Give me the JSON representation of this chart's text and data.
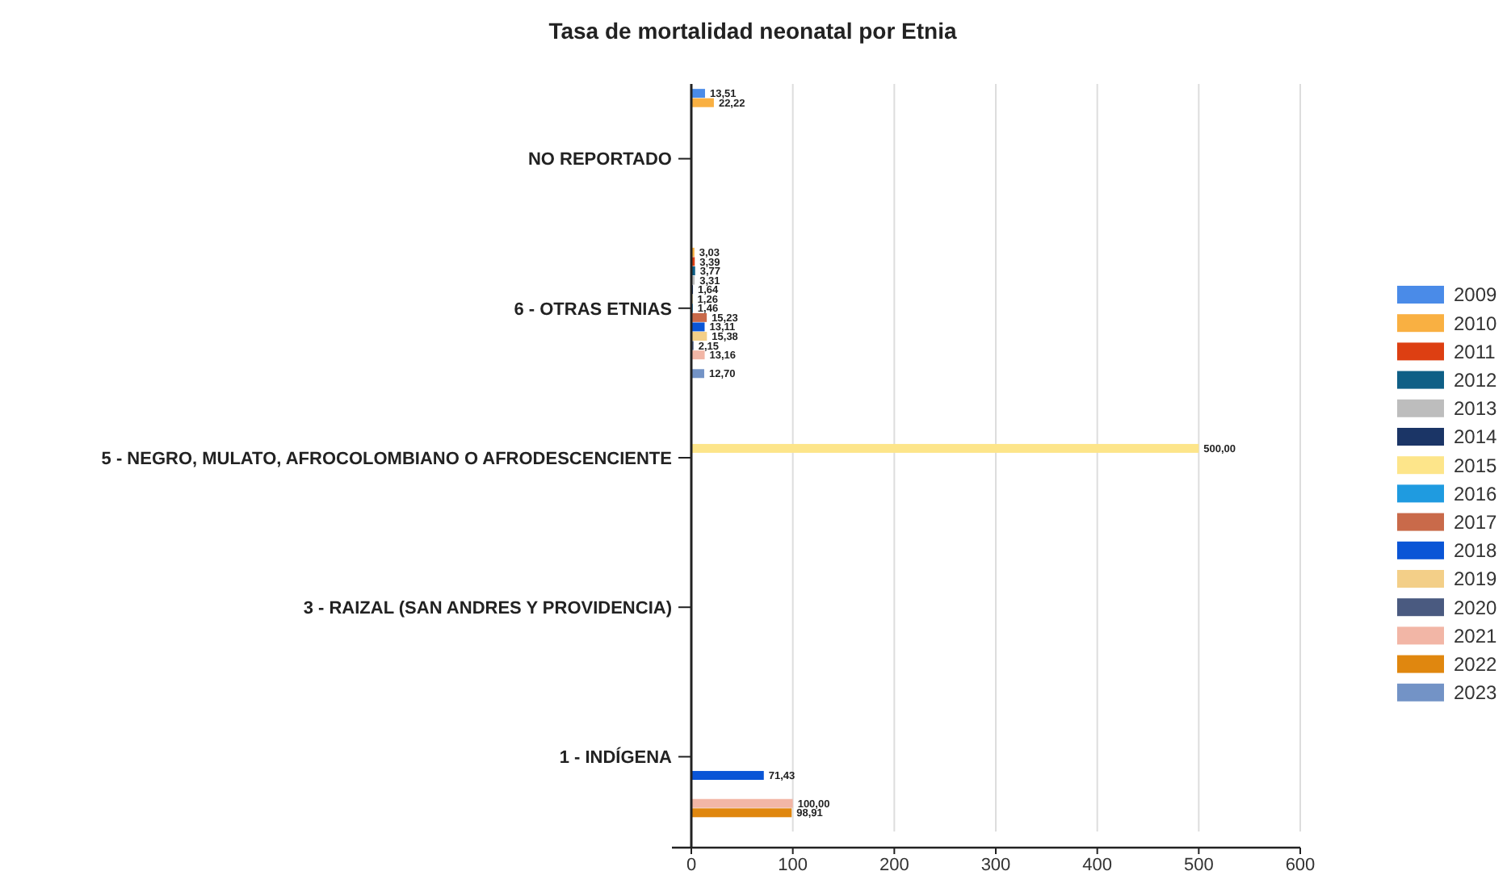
{
  "chart_data": {
    "type": "bar",
    "orientation": "horizontal",
    "title": "Tasa de mortalidad neonatal por Etnia",
    "categories": [
      "NO REPORTADO",
      "6 - OTRAS ETNIAS",
      "5 - NEGRO, MULATO, AFROCOLOMBIANO O AFRODESCENCIENTE",
      "3 - RAIZAL (SAN ANDRES Y PROVIDENCIA)",
      "1 - INDÍGENA"
    ],
    "xlim": [
      0,
      600
    ],
    "xticks": [
      0,
      100,
      200,
      300,
      400,
      500,
      600
    ],
    "grid": "x",
    "legend": "right",
    "series": [
      {
        "name": "2009",
        "color": "#4a8be8",
        "values": [
          13.51,
          null,
          null,
          null,
          null
        ],
        "value_labels": [
          "13,51",
          null,
          null,
          null,
          null
        ]
      },
      {
        "name": "2010",
        "color": "#f9b042",
        "values": [
          22.22,
          3.03,
          null,
          null,
          null
        ],
        "value_labels": [
          "22,22",
          "3,03",
          null,
          null,
          null
        ]
      },
      {
        "name": "2011",
        "color": "#dd3f12",
        "values": [
          null,
          3.39,
          null,
          null,
          null
        ],
        "value_labels": [
          null,
          "3,39",
          null,
          null,
          null
        ]
      },
      {
        "name": "2012",
        "color": "#0f5f86",
        "values": [
          null,
          3.77,
          null,
          null,
          null
        ],
        "value_labels": [
          null,
          "3,77",
          null,
          null,
          null
        ]
      },
      {
        "name": "2013",
        "color": "#bdbdbd",
        "values": [
          null,
          3.31,
          null,
          null,
          null
        ],
        "value_labels": [
          null,
          "3,31",
          null,
          null,
          null
        ]
      },
      {
        "name": "2014",
        "color": "#1b3566",
        "values": [
          null,
          1.64,
          null,
          null,
          null
        ],
        "value_labels": [
          null,
          "1,64",
          null,
          null,
          null
        ]
      },
      {
        "name": "2015",
        "color": "#fde58a",
        "values": [
          null,
          1.26,
          500,
          null,
          null
        ],
        "value_labels": [
          null,
          "1,26",
          "500,00",
          null,
          null
        ]
      },
      {
        "name": "2016",
        "color": "#1f9be0",
        "values": [
          null,
          1.46,
          null,
          null,
          null
        ],
        "value_labels": [
          null,
          "1,46",
          null,
          null,
          null
        ]
      },
      {
        "name": "2017",
        "color": "#c96a4a",
        "values": [
          null,
          15.23,
          null,
          null,
          null
        ],
        "value_labels": [
          null,
          "15,23",
          null,
          null,
          null
        ]
      },
      {
        "name": "2018",
        "color": "#0a55d6",
        "values": [
          null,
          13.11,
          null,
          null,
          71.43
        ],
        "value_labels": [
          null,
          "13,11",
          null,
          null,
          "71,43"
        ]
      },
      {
        "name": "2019",
        "color": "#f3cf88",
        "values": [
          null,
          15.38,
          null,
          null,
          null
        ],
        "value_labels": [
          null,
          "15,38",
          null,
          null,
          null
        ]
      },
      {
        "name": "2020",
        "color": "#4a5a80",
        "values": [
          null,
          2.15,
          null,
          null,
          null
        ],
        "value_labels": [
          null,
          "2,15",
          null,
          null,
          null
        ]
      },
      {
        "name": "2021",
        "color": "#f2b6a6",
        "values": [
          null,
          13.16,
          null,
          null,
          100
        ],
        "value_labels": [
          null,
          "13,16",
          null,
          null,
          "100,00"
        ]
      },
      {
        "name": "2022",
        "color": "#e0870f",
        "values": [
          null,
          null,
          null,
          null,
          98.91
        ],
        "value_labels": [
          null,
          null,
          null,
          null,
          "98,91"
        ]
      },
      {
        "name": "2023",
        "color": "#7393c6",
        "values": [
          null,
          12.7,
          null,
          null,
          null
        ],
        "value_labels": [
          null,
          "12,70",
          null,
          null,
          null
        ]
      }
    ]
  }
}
